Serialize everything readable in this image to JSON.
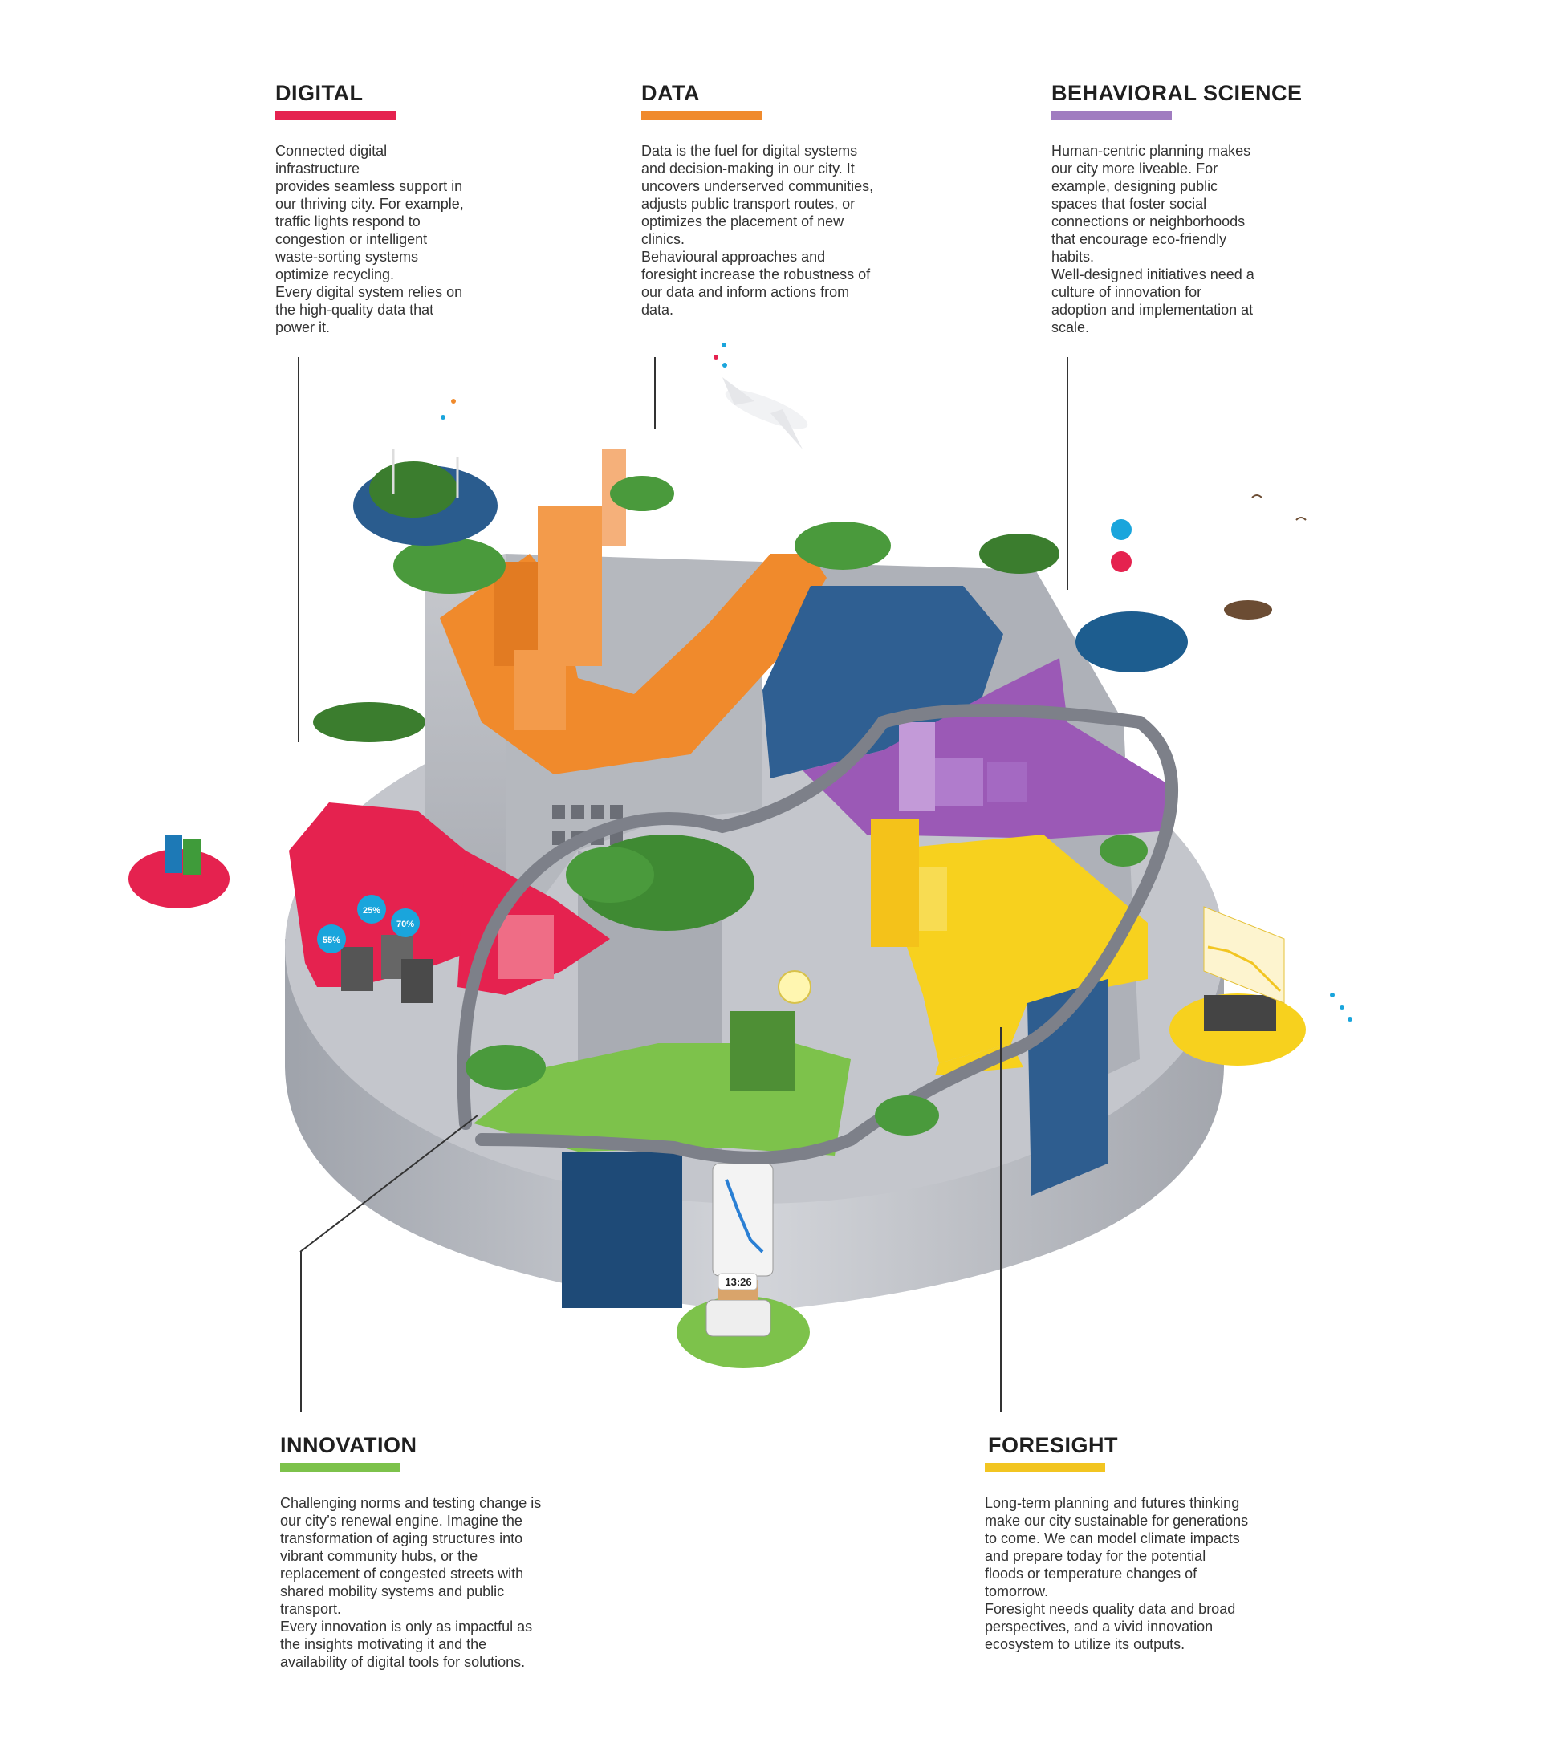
{
  "sections": {
    "digital": {
      "title": "DIGITAL",
      "color": "#e5224f",
      "lines": [
        "Connected digital",
        "infrastructure",
        "provides seamless support in",
        "our thriving city. For example,",
        "traffic lights respond to",
        "congestion or intelligent",
        "waste-sorting systems",
        "optimize recycling.",
        "Every digital system relies on",
        "the high-quality data that",
        "power it."
      ]
    },
    "data": {
      "title": "DATA",
      "color": "#f08a2c",
      "lines": [
        "Data is the fuel for digital systems",
        "and decision-making in our city. It",
        "uncovers underserved communities,",
        "adjusts public transport routes, or",
        "optimizes the placement of new",
        "clinics.",
        "Behavioural approaches and",
        "foresight increase the robustness of",
        "our data and inform actions from",
        "data."
      ]
    },
    "behavioral": {
      "title": "BEHAVIORAL SCIENCE",
      "color": "#a07cc0",
      "lines": [
        "Human-centric planning makes",
        "our city more liveable. For",
        "example, designing public",
        "spaces that foster social",
        "connections or neighborhoods",
        "that encourage eco-friendly",
        "habits.",
        "Well-designed initiatives need a",
        "culture of innovation for",
        "adoption and implementation at",
        "scale."
      ]
    },
    "innovation": {
      "title": "INNOVATION",
      "color": "#7dc24b",
      "lines": [
        "Challenging norms and testing change is",
        "our city’s renewal engine. Imagine the",
        "transformation of aging structures into",
        "vibrant community hubs, or the",
        "replacement of congested streets with",
        "shared mobility systems and public",
        "transport.",
        "Every innovation is only as impactful as",
        "the insights motivating it and the",
        "availability of digital tools for solutions."
      ]
    },
    "foresight": {
      "title": "FORESIGHT",
      "color": "#f2c521",
      "lines": [
        "Long-term planning and futures thinking",
        "make our city sustainable for generations",
        "to come. We can model climate impacts",
        "and prepare today for the potential",
        "floods or temperature changes of",
        "tomorrow.",
        "Foresight needs quality data and broad",
        "perspectives, and a vivid innovation",
        "ecosystem to utilize its outputs."
      ]
    }
  },
  "illustration": {
    "percent_labels": [
      "25%",
      "70%",
      "55%"
    ],
    "clock": "13:26",
    "colors": {
      "digital_zone": "#e5224f",
      "data_zone": "#f08a2c",
      "behavioral_zone": "#9b59b6",
      "innovation_zone": "#7dc24b",
      "foresight_zone": "#f7d11e",
      "concrete": "#b9bcc4",
      "water": "#2f5f92",
      "tree": "#4a9a3c"
    }
  }
}
